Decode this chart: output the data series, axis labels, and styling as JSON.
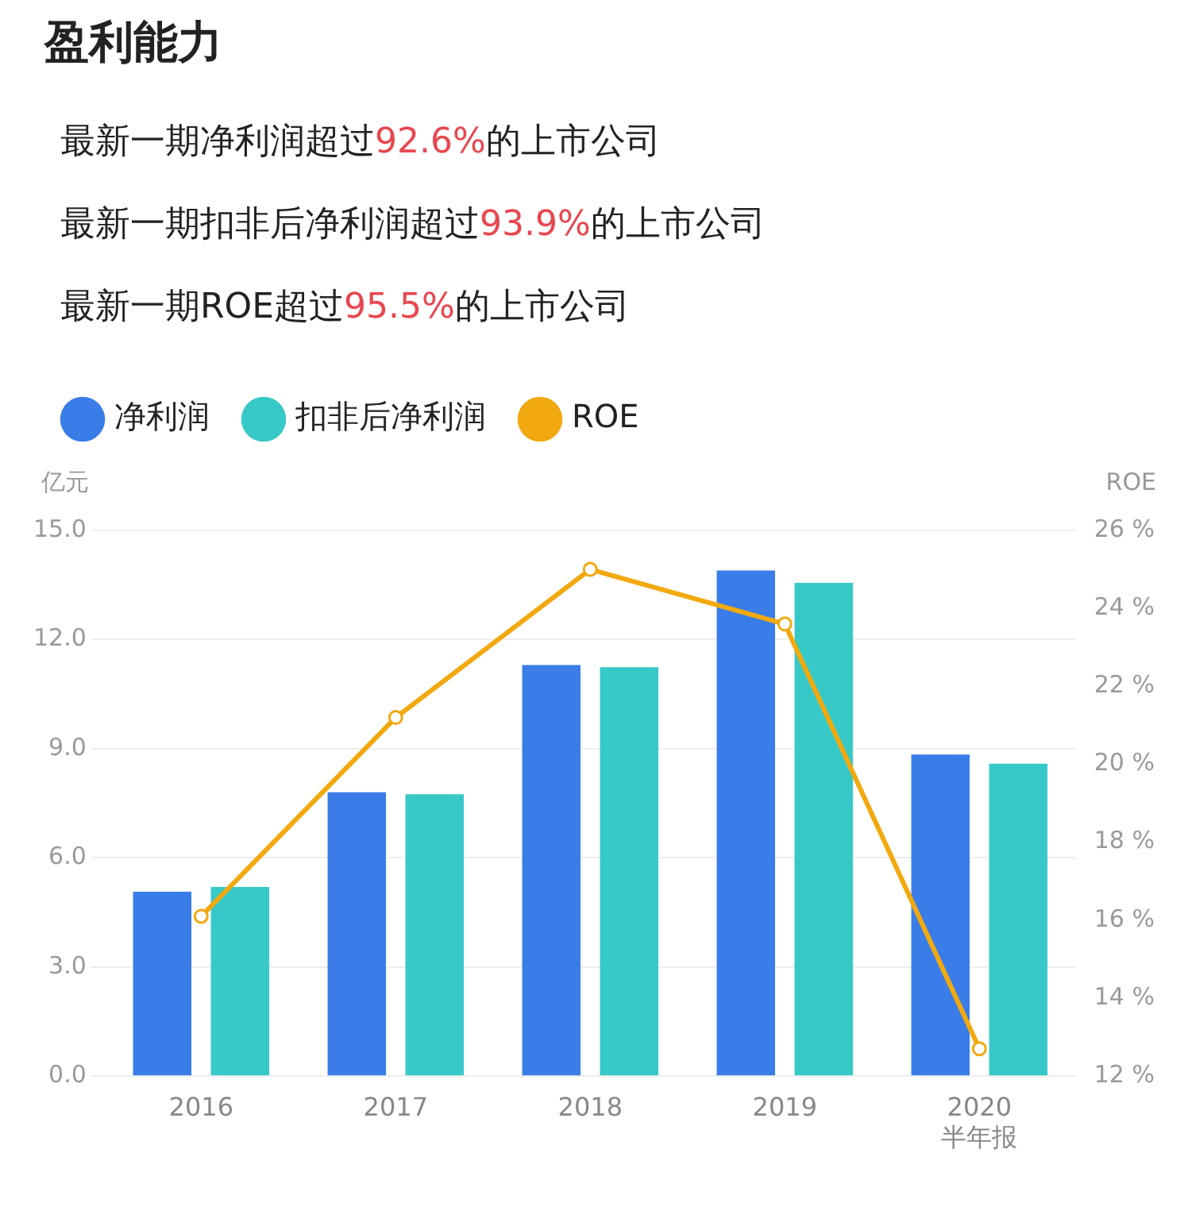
{
  "chart_data": {
    "type": "bar",
    "title": "盈利能力",
    "annotations": [
      "最新一期净利润超过92.6%的上市公司",
      "最新一期扣非后净利润超过93.9%的上市公司",
      "最新一期ROE超过95.5%的上市公司"
    ],
    "categories": [
      "2016",
      "2017",
      "2018",
      "2019",
      "2020\n半年报"
    ],
    "ylabel": "亿元",
    "y2label": "ROE",
    "series": [
      {
        "name": "净利润",
        "color": "#3a7de8",
        "values": [
          5.07,
          7.8,
          11.3,
          13.9,
          8.84
        ]
      },
      {
        "name": "扣非后净利润",
        "color": "#37c9c8",
        "values": [
          5.2,
          7.75,
          11.24,
          13.56,
          8.59
        ]
      },
      {
        "name": "ROE",
        "type": "line",
        "axis": "y2",
        "color": "#f2a90f",
        "values": [
          16.1,
          21.2,
          25.0,
          23.6,
          12.7
        ]
      }
    ],
    "ylim": [
      0,
      15
    ],
    "yticks": [
      {
        "value": 0,
        "label": "0.0"
      },
      {
        "value": 3,
        "label": "3.0"
      },
      {
        "value": 6,
        "label": "6.0"
      },
      {
        "value": 9,
        "label": "9.0"
      },
      {
        "value": 12,
        "label": "12.0"
      },
      {
        "value": 15,
        "label": "15.0"
      }
    ],
    "y2lim": [
      12,
      26
    ],
    "y2ticks": [
      {
        "value": 12,
        "label": "12 %"
      },
      {
        "value": 14,
        "label": "14 %"
      },
      {
        "value": 16,
        "label": "16 %"
      },
      {
        "value": 18,
        "label": "18 %"
      },
      {
        "value": 20,
        "label": "20 %"
      },
      {
        "value": 22,
        "label": "22 %"
      },
      {
        "value": 24,
        "label": "24 %"
      },
      {
        "value": 26,
        "label": "26 %"
      }
    ],
    "grid": "y",
    "legend": "top left",
    "marker": "circle"
  }
}
